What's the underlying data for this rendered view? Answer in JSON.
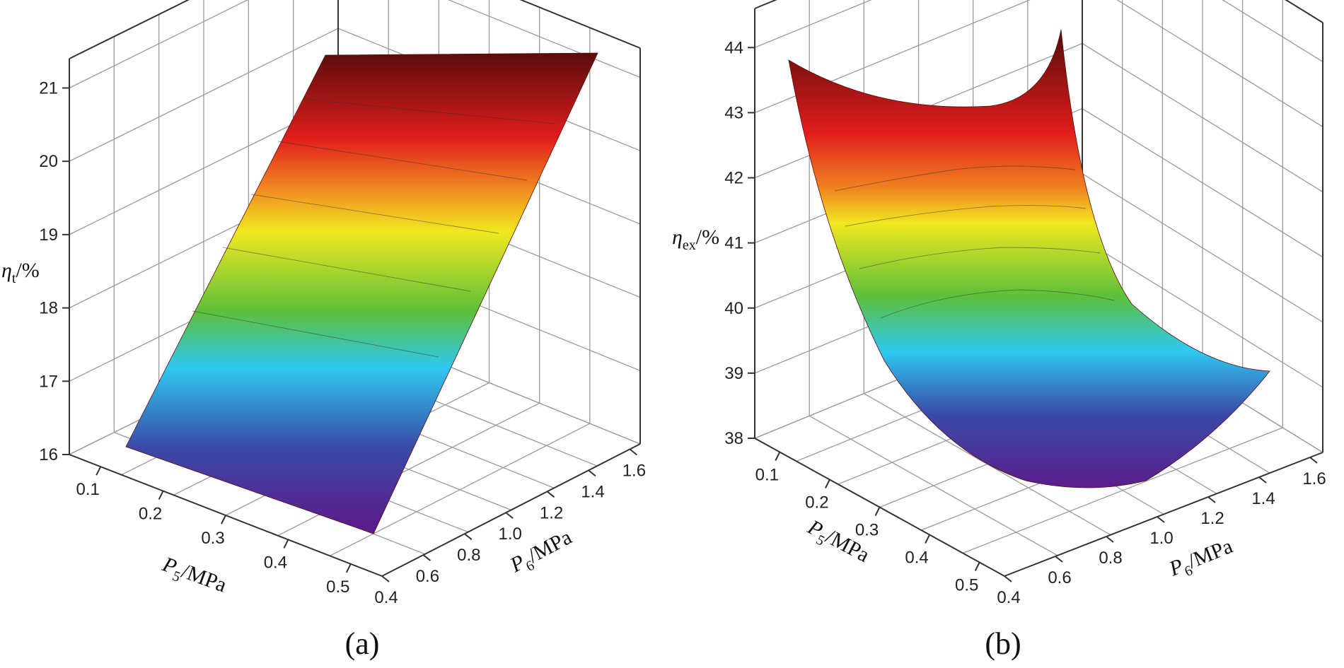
{
  "chart_data": [
    {
      "id": "a",
      "type": "surface3d",
      "panel_label": "(a)",
      "z_label": {
        "symbol": "η",
        "sub": "t",
        "unit": "/%"
      },
      "x_label": {
        "symbol": "P",
        "sub": "5",
        "unit": "/MPa"
      },
      "y_label": {
        "symbol": "P",
        "sub": "6",
        "unit": "/MPa"
      },
      "zlim": [
        16,
        21.4
      ],
      "z_ticks": [
        "16",
        "17",
        "18",
        "19",
        "20",
        "21"
      ],
      "x_ticks": [
        "0.1",
        "0.2",
        "0.3",
        "0.4",
        "0.5"
      ],
      "y_ticks": [
        "0.4",
        "0.6",
        "0.8",
        "1.0",
        "1.2",
        "1.4",
        "1.6"
      ],
      "xlim": [
        0.05,
        0.55
      ],
      "ylim": [
        0.4,
        1.65
      ],
      "surface": {
        "description_values": "z increases linearly with P6 and is nearly flat in P5",
        "z_at_min_P6": 16.1,
        "z_at_max_P6": 21.3
      },
      "colormap": [
        "#5a1e8c",
        "#3a4aa8",
        "#2ec8f0",
        "#5cc03a",
        "#f0e820",
        "#f08020",
        "#e01c1c",
        "#5a0c0c"
      ]
    },
    {
      "id": "b",
      "type": "surface3d",
      "panel_label": "(b)",
      "z_label": {
        "symbol": "η",
        "sub": "ex",
        "unit": "/%"
      },
      "x_label": {
        "symbol": "P",
        "sub": "5",
        "unit": "/MPa"
      },
      "y_label": {
        "symbol": "P",
        "sub": "6",
        "unit": "/MPa"
      },
      "zlim": [
        38,
        44.6
      ],
      "z_ticks": [
        "38",
        "39",
        "40",
        "41",
        "42",
        "43",
        "44"
      ],
      "x_ticks": [
        "0.1",
        "0.2",
        "0.3",
        "0.4",
        "0.5"
      ],
      "y_ticks": [
        "0.4",
        "0.6",
        "0.8",
        "1.0",
        "1.2",
        "1.4",
        "1.6"
      ],
      "xlim": [
        0.05,
        0.55
      ],
      "ylim": [
        0.4,
        1.65
      ],
      "surface": {
        "description_values": "bowl-shaped, minimum near P6 = 1.0 and high P5, maxima at low P5 corners",
        "z_min": 38.1,
        "z_max": 44.8
      },
      "colormap": [
        "#5a1e8c",
        "#3a4aa8",
        "#2ec8f0",
        "#5cc03a",
        "#f0e820",
        "#f08020",
        "#e01c1c",
        "#5a0c0c"
      ]
    }
  ]
}
